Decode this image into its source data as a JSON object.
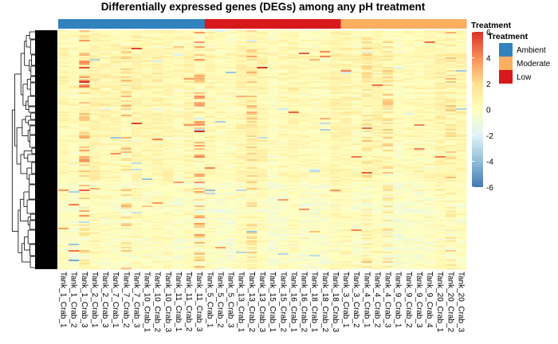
{
  "chart_data": {
    "type": "heatmap",
    "title": "Differentially expressed genes (DEGs) among any pH treatment",
    "columns": [
      "Tank_1_Crab_1",
      "Tank_1_Crab_2",
      "Tank_1_Crab_3",
      "Tank_2_Crab_1",
      "Tank_2_Crab_3",
      "Tank_7_Crab_1",
      "Tank_7_Crab_2",
      "Tank_7_Crab_3",
      "Tank_10_Crab_1",
      "Tank_10_Crab_2",
      "Tank_10_Crab_3",
      "Tank_11_Crab_1",
      "Tank_11_Crab_2",
      "Tank_11_Crab_3",
      "Tank_5_Crab_1",
      "Tank_5_Crab_2",
      "Tank_5_Crab_3",
      "Tank_13_Crab_1",
      "Tank_13_Crab_2",
      "Tank_13_Crab_3",
      "Tank_15_Crab_1",
      "Tank_15_Crab_2",
      "Tank_16_Crab_1",
      "Tank_16_Crab_2",
      "Tank_18_Crab_1",
      "Tank_18_Crab_2",
      "Tank_18_Crab_3",
      "Tank_3_Crab_1",
      "Tank_3_Crab_2",
      "Tank_4_Crab_1",
      "Tank_4_Crab_2",
      "Tank_4_Crab_3",
      "Tank_9_Crab_1",
      "Tank_9_Crab_2",
      "Tank_9_Crab_3",
      "Tank_9_Crab_4",
      "Tank_20_Crab_1",
      "Tank_20_Crab_2",
      "Tank_20_Crab_3"
    ],
    "treatment": [
      "Ambient",
      "Ambient",
      "Ambient",
      "Ambient",
      "Ambient",
      "Ambient",
      "Ambient",
      "Ambient",
      "Ambient",
      "Ambient",
      "Ambient",
      "Ambient",
      "Ambient",
      "Ambient",
      "Low",
      "Low",
      "Low",
      "Low",
      "Low",
      "Low",
      "Low",
      "Low",
      "Low",
      "Low",
      "Low",
      "Low",
      "Low",
      "Moderate",
      "Moderate",
      "Moderate",
      "Moderate",
      "Moderate",
      "Moderate",
      "Moderate",
      "Moderate",
      "Moderate",
      "Moderate",
      "Moderate",
      "Moderate"
    ],
    "color_scale": {
      "min": -6,
      "max": 6,
      "ticks": [
        6,
        4,
        2,
        0,
        -2,
        -4,
        -6
      ],
      "colors": [
        "#4575b4",
        "#91bfdb",
        "#e0f3f8",
        "#ffffbf",
        "#fee090",
        "#fc8d59",
        "#d73027"
      ]
    },
    "legend": {
      "bar_title": "Treatment",
      "annotation_title": "Treatment",
      "entries": [
        {
          "name": "Ambient",
          "color": "#3182bd"
        },
        {
          "name": "Moderate",
          "color": "#fdae61"
        },
        {
          "name": "Low",
          "color": "#d7191c"
        }
      ]
    },
    "row_dendrogram": true
  }
}
